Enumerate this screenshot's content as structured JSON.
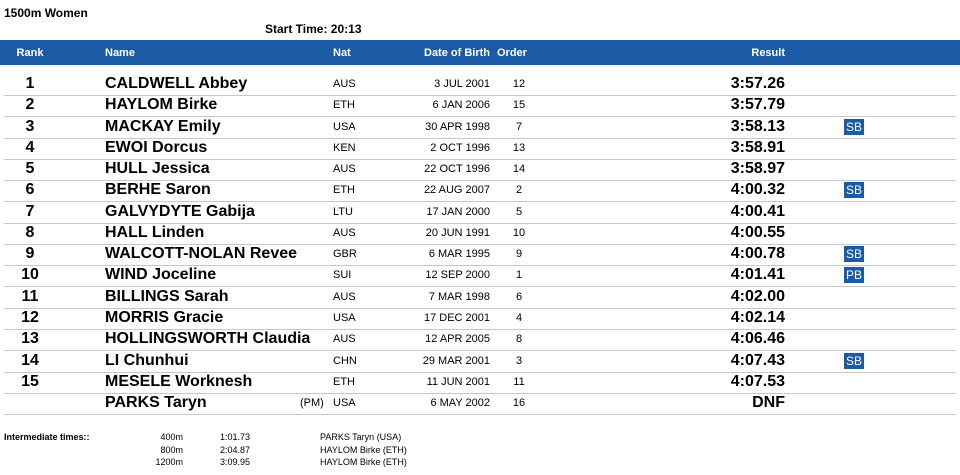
{
  "header": {
    "title": "1500m Women",
    "start_time": "Start Time:  20:13"
  },
  "table": {
    "columns": [
      "Rank",
      "Name",
      "Nat",
      "Date of Birth",
      "Order",
      "Result"
    ],
    "rows": [
      {
        "rank": "1",
        "name": "CALDWELL Abbey",
        "nat": "AUS",
        "dob": "3 JUL 2001",
        "order": "12",
        "result": "3:57.26"
      },
      {
        "rank": "2",
        "name": "HAYLOM Birke",
        "nat": "ETH",
        "dob": "6 JAN 2006",
        "order": "15",
        "result": "3:57.79"
      },
      {
        "rank": "3",
        "name": "MACKAY Emily",
        "nat": "USA",
        "dob": "30 APR 1998",
        "order": "7",
        "result": "3:58.13",
        "note": "SB"
      },
      {
        "rank": "4",
        "name": "EWOI Dorcus",
        "nat": "KEN",
        "dob": "2 OCT 1996",
        "order": "13",
        "result": "3:58.91"
      },
      {
        "rank": "5",
        "name": "HULL Jessica",
        "nat": "AUS",
        "dob": "22 OCT 1996",
        "order": "14",
        "result": "3:58.97"
      },
      {
        "rank": "6",
        "name": "BERHE Saron",
        "nat": "ETH",
        "dob": "22 AUG 2007",
        "order": "2",
        "result": "4:00.32",
        "note": "SB"
      },
      {
        "rank": "7",
        "name": "GALVYDYTE Gabija",
        "nat": "LTU",
        "dob": "17 JAN 2000",
        "order": "5",
        "result": "4:00.41"
      },
      {
        "rank": "8",
        "name": "HALL Linden",
        "nat": "AUS",
        "dob": "20 JUN 1991",
        "order": "10",
        "result": "4:00.55"
      },
      {
        "rank": "9",
        "name": "WALCOTT-NOLAN Revee",
        "nat": "GBR",
        "dob": "6 MAR 1995",
        "order": "9",
        "result": "4:00.78",
        "note": "SB"
      },
      {
        "rank": "10",
        "name": "WIND Joceline",
        "nat": "SUI",
        "dob": "12 SEP 2000",
        "order": "1",
        "result": "4:01.41",
        "note": "PB"
      },
      {
        "rank": "11",
        "name": "BILLINGS Sarah",
        "nat": "AUS",
        "dob": "7 MAR 1998",
        "order": "6",
        "result": "4:02.00"
      },
      {
        "rank": "12",
        "name": "MORRIS Gracie",
        "nat": "USA",
        "dob": "17 DEC 2001",
        "order": "4",
        "result": "4:02.14"
      },
      {
        "rank": "13",
        "name": "HOLLINGSWORTH Claudia",
        "nat": "AUS",
        "dob": "12 APR 2005",
        "order": "8",
        "result": "4:06.46"
      },
      {
        "rank": "14",
        "name": "LI Chunhui",
        "nat": "CHN",
        "dob": "29 MAR 2001",
        "order": "3",
        "result": "4:07.43",
        "note": "SB"
      },
      {
        "rank": "15",
        "name": "MESELE Worknesh",
        "nat": "ETH",
        "dob": "11 JUN 2001",
        "order": "11",
        "result": "4:07.53"
      },
      {
        "name": "PARKS Taryn",
        "pm": "(PM)",
        "nat": "USA",
        "dob": "6 MAY 2002",
        "order": "16",
        "result": "DNF"
      }
    ]
  },
  "intermediate": {
    "label": "Intermediate times::",
    "rows": [
      [
        "400m",
        "1:01.73",
        "PARKS Taryn (USA)"
      ],
      [
        "800m",
        "2:04.87",
        "HAYLOM Birke (ETH)"
      ],
      [
        "1200m",
        "3:09.95",
        "HAYLOM Birke (ETH)"
      ]
    ]
  }
}
